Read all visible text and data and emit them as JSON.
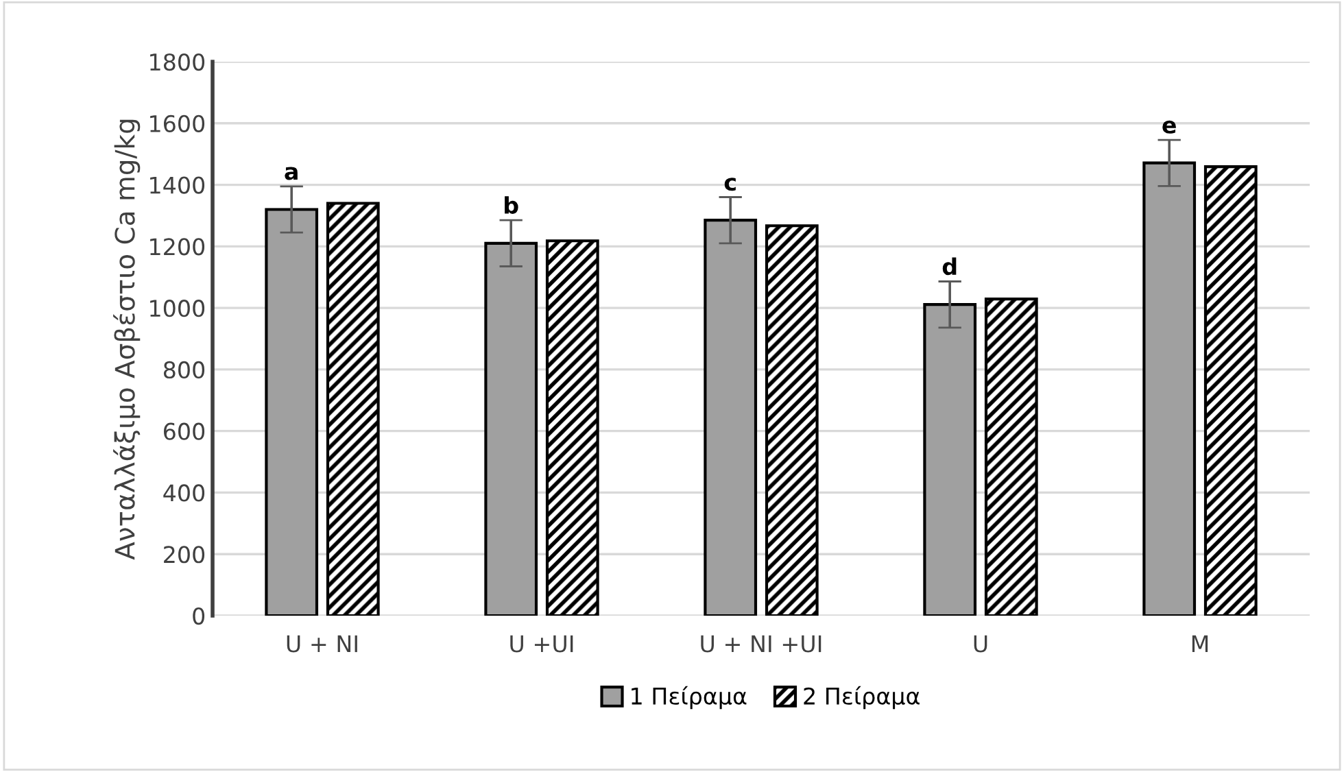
{
  "chart_data": {
    "type": "bar",
    "ylabel": "Ανταλλάξιμο Ασβέστιο Ca mg/kg",
    "categories": [
      "U + NI",
      "U +UI",
      "U + NI +UI",
      "U",
      "M"
    ],
    "series": [
      {
        "name": "1 Πείραμα",
        "color": "#a0a0a0",
        "values": [
          1320,
          1210,
          1285,
          1011,
          1471
        ],
        "errors": [
          75,
          75,
          75,
          75,
          75
        ]
      },
      {
        "name": "2 Πείραμα",
        "color": "#000000",
        "values": [
          1340,
          1218,
          1267,
          1029,
          1459
        ]
      }
    ],
    "annotations": [
      "a",
      "b",
      "c",
      "d",
      "e"
    ],
    "ylim": [
      0,
      1800
    ],
    "yticks": [
      0,
      200,
      400,
      600,
      800,
      1000,
      1200,
      1400,
      1600,
      1800
    ],
    "grid": "y",
    "legend": "bottom"
  }
}
